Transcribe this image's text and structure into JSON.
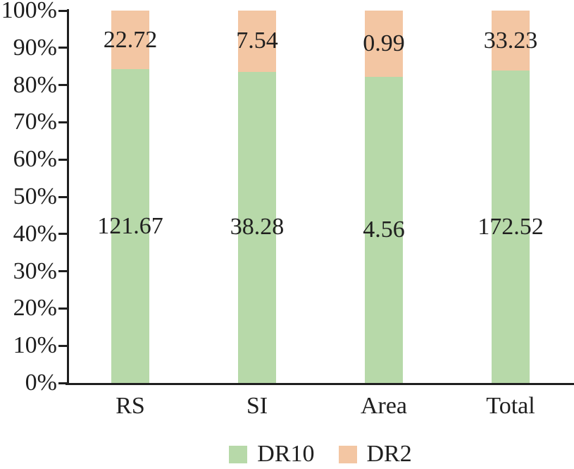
{
  "chart_data": {
    "type": "bar",
    "subtype": "stacked-100-percent",
    "title": "",
    "xlabel": "",
    "ylabel": "",
    "grid": false,
    "categories": [
      "RS",
      "SI",
      "Area",
      "Total"
    ],
    "series": [
      {
        "name": "DR10",
        "color": "#b7d9a9",
        "values": [
          121.67,
          38.28,
          4.56,
          172.52
        ],
        "labels": [
          "121.67",
          "38.28",
          "4.56",
          "172.52"
        ]
      },
      {
        "name": "DR2",
        "color": "#f3c6a3",
        "values": [
          22.72,
          7.54,
          0.99,
          33.23
        ],
        "labels": [
          "22.72",
          "7.54",
          "0.99",
          "33.23"
        ]
      }
    ],
    "y_axis": {
      "min": 0,
      "max": 100,
      "unit": "%",
      "tick_step": 10,
      "tick_labels": [
        "0%",
        "10%",
        "20%",
        "30%",
        "40%",
        "50%",
        "60%",
        "70%",
        "80%",
        "90%",
        "100%"
      ]
    },
    "legend": {
      "position": "bottom-center",
      "entries": [
        {
          "label": "DR10",
          "color": "#b7d9a9"
        },
        {
          "label": "DR2",
          "color": "#f3c6a3"
        }
      ]
    },
    "colors": {
      "background": "#ffffff",
      "text": "#1f1f1f",
      "axis": "#1f1f1f"
    }
  }
}
